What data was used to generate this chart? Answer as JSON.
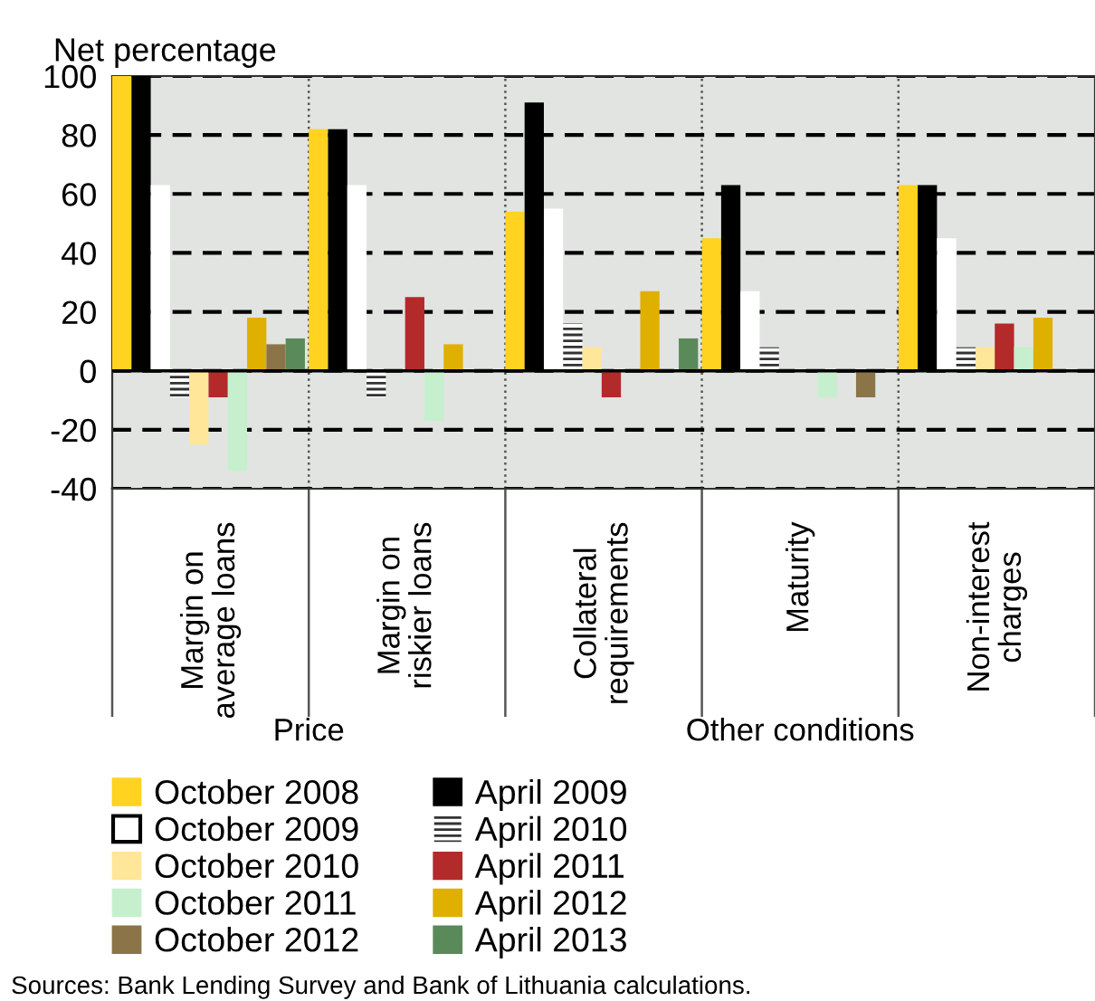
{
  "chart_data": {
    "type": "bar",
    "ylabel": "Net percentage",
    "categories": [
      "Margin on\naverage loans",
      "Margin on\nriskier loans",
      "Collateral\nrequirements",
      "Maturity",
      "Non-interest\ncharges"
    ],
    "series": [
      {
        "name": "October 2008",
        "color": "#ffd320",
        "values": [
          100,
          82,
          54,
          45,
          63
        ]
      },
      {
        "name": "April 2009",
        "color": "#000000",
        "values": [
          100,
          82,
          91,
          63,
          63
        ]
      },
      {
        "name": "October 2009",
        "color": "#ffffff",
        "values": [
          63,
          63,
          55,
          27,
          45
        ]
      },
      {
        "name": "April 2010",
        "color": "#333333",
        "values": [
          -9,
          -9,
          16,
          8,
          8
        ]
      },
      {
        "name": "October 2010",
        "color": "#ffe699",
        "values": [
          -25,
          0,
          8,
          0,
          8
        ]
      },
      {
        "name": "April 2011",
        "color": "#b22a2a",
        "values": [
          -9,
          25,
          -9,
          0,
          16
        ]
      },
      {
        "name": "October 2011",
        "color": "#c6efce",
        "values": [
          -34,
          -17,
          0,
          -9,
          8
        ]
      },
      {
        "name": "April 2012",
        "color": "#e0b000",
        "values": [
          18,
          9,
          27,
          0,
          18
        ]
      },
      {
        "name": "October 2012",
        "color": "#8b7548",
        "values": [
          9,
          0,
          0,
          -9,
          0
        ]
      },
      {
        "name": "April 2013",
        "color": "#5a8a5a",
        "values": [
          11,
          0,
          11,
          0,
          0
        ]
      }
    ],
    "ylim": [
      -40,
      100
    ],
    "yticks": [
      -40,
      -20,
      0,
      20,
      40,
      60,
      80,
      100
    ],
    "grid": "y",
    "legend": "bottom",
    "annotations": [
      "Price",
      "Other conditions",
      "Sources: Bank Lending Survey and Bank of Lithuania calculations."
    ]
  }
}
